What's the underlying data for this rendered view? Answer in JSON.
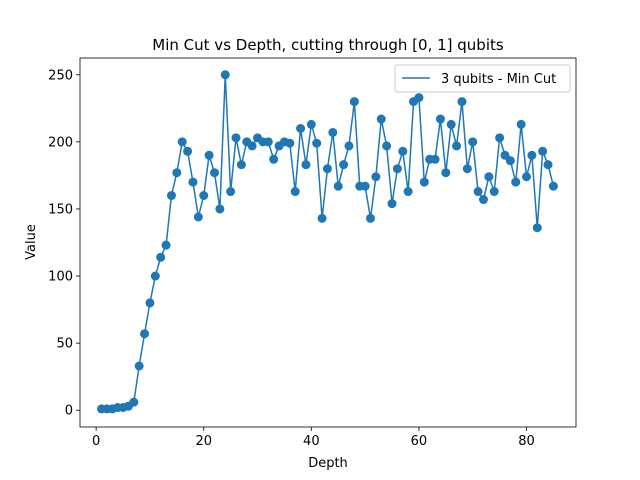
{
  "chart_data": {
    "type": "line",
    "title": "Min Cut vs Depth, cutting through [0, 1] qubits",
    "xlabel": "Depth",
    "ylabel": "Value",
    "xlim": [
      -3,
      89.2
    ],
    "ylim": [
      -12.5,
      262.5
    ],
    "xticks": [
      0,
      20,
      40,
      60,
      80
    ],
    "yticks": [
      0,
      50,
      100,
      150,
      200,
      250
    ],
    "grid": false,
    "legend_position": "upper-right",
    "colors": {
      "series": "#1f77b4"
    },
    "series": [
      {
        "name": "3 qubits - Min Cut",
        "marker": "circle",
        "x": [
          1,
          2,
          3,
          4,
          5,
          6,
          7,
          8,
          9,
          10,
          11,
          12,
          13,
          14,
          15,
          16,
          17,
          18,
          19,
          20,
          21,
          22,
          23,
          24,
          25,
          26,
          27,
          28,
          29,
          30,
          31,
          32,
          33,
          34,
          35,
          36,
          37,
          38,
          39,
          40,
          41,
          42,
          43,
          44,
          45,
          46,
          47,
          48,
          49,
          50,
          51,
          52,
          53,
          54,
          55,
          56,
          57,
          58,
          59,
          60,
          61,
          62,
          63,
          64,
          65,
          66,
          67,
          68,
          69,
          70,
          71,
          72,
          73,
          74,
          75,
          76,
          77,
          78,
          79,
          80,
          81,
          82,
          83,
          84,
          85
        ],
        "values": [
          1,
          1,
          1,
          2,
          2,
          3,
          6,
          33,
          57,
          80,
          100,
          114,
          123,
          160,
          177,
          200,
          193,
          170,
          144,
          160,
          190,
          177,
          150,
          250,
          163,
          203,
          183,
          200,
          197,
          203,
          200,
          200,
          187,
          197,
          200,
          199,
          163,
          210,
          183,
          213,
          199,
          143,
          180,
          207,
          167,
          183,
          197,
          230,
          167,
          167,
          143,
          174,
          217,
          197,
          154,
          180,
          193,
          163,
          230,
          233,
          170,
          187,
          187,
          217,
          177,
          213,
          197,
          230,
          180,
          200,
          163,
          157,
          174,
          163,
          203,
          190,
          186,
          170,
          213,
          174,
          190,
          136,
          193,
          183,
          167
        ]
      }
    ]
  }
}
